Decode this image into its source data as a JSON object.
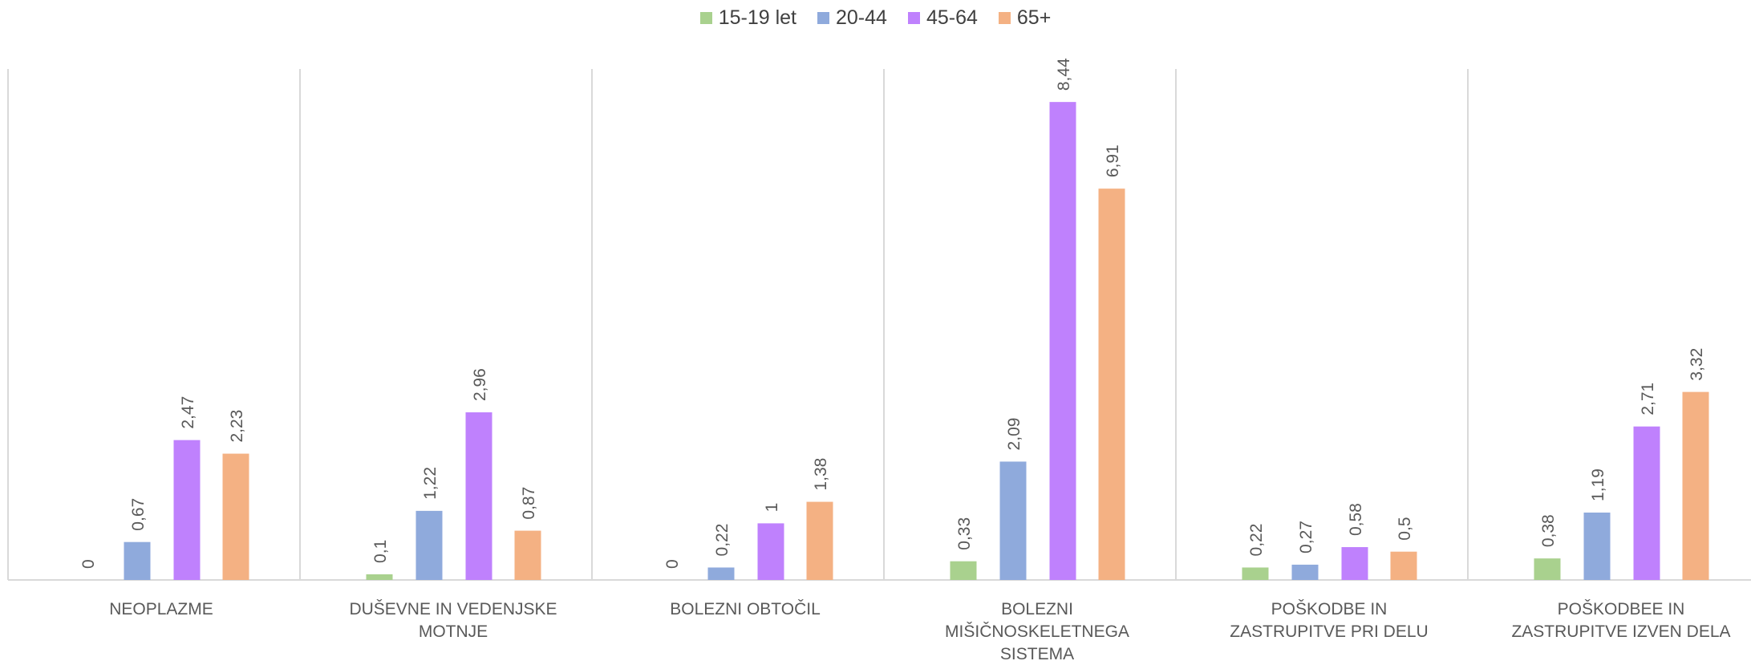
{
  "chart_data": {
    "type": "bar",
    "categories": [
      [
        "NEOPLAZME"
      ],
      [
        "DUŠEVNE IN VEDENJSKE",
        "MOTNJE"
      ],
      [
        "BOLEZNI OBTOČIL"
      ],
      [
        "BOLEZNI",
        "MIŠIČNOSKELETNEGA",
        "SISTEMA"
      ],
      [
        "POŠKODBE IN",
        "ZASTRUPITVE PRI DELU"
      ],
      [
        "POŠKODBEE IN",
        "ZASTRUPITVE IZVEN DELA"
      ]
    ],
    "series": [
      {
        "name": "15-19 let",
        "color": "#A9D18E",
        "values": [
          0,
          0.1,
          0,
          0.33,
          0.22,
          0.38
        ],
        "labels": [
          "0",
          "0,1",
          "0",
          "0,33",
          "0,22",
          "0,38"
        ]
      },
      {
        "name": "20-44",
        "color": "#8FAADC",
        "values": [
          0.67,
          1.22,
          0.22,
          2.09,
          0.27,
          1.19
        ],
        "labels": [
          "0,67",
          "1,22",
          "0,22",
          "2,09",
          "0,27",
          "1,19"
        ]
      },
      {
        "name": "45-64",
        "color": "#BF81FD",
        "values": [
          2.47,
          2.96,
          1,
          8.44,
          0.58,
          2.71
        ],
        "labels": [
          "2,47",
          "2,96",
          "1",
          "8,44",
          "0,58",
          "2,71"
        ]
      },
      {
        "name": "65+",
        "color": "#F4B183",
        "values": [
          2.23,
          0.87,
          1.38,
          6.91,
          0.5,
          3.32
        ],
        "labels": [
          "2,23",
          "0,87",
          "1,38",
          "6,91",
          "0,5",
          "3,32"
        ]
      }
    ],
    "title": "",
    "xlabel": "",
    "ylabel": "",
    "ylim": [
      0,
      9
    ],
    "grid": false,
    "legend": "top-center",
    "data_labels": true
  }
}
